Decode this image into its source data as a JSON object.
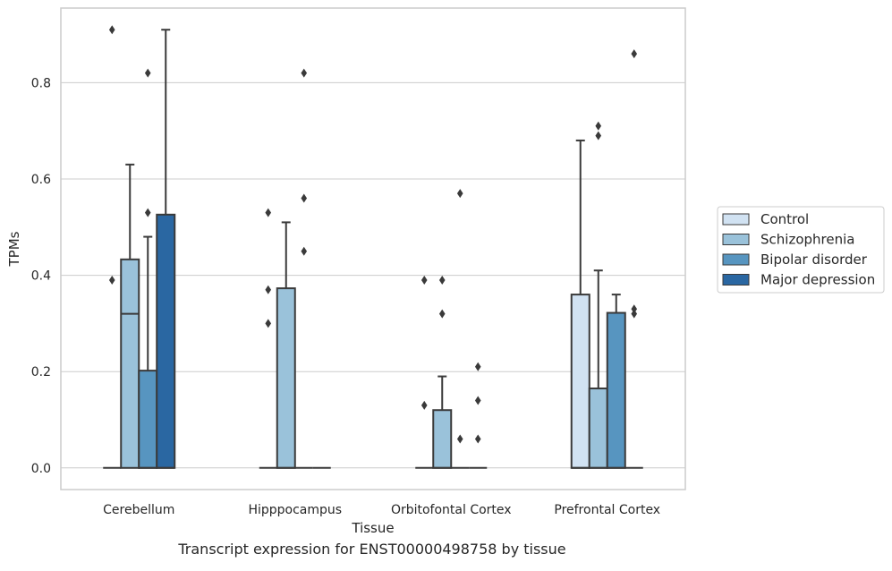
{
  "chart_data": {
    "type": "box",
    "xlabel": "Tissue",
    "ylabel": "TPMs",
    "caption": "Transcript expression for ENST00000498758 by tissue",
    "ylim": [
      -0.045,
      0.955
    ],
    "yticks": [
      0.0,
      0.2,
      0.4,
      0.6,
      0.8
    ],
    "ytick_labels": [
      "0.0",
      "0.2",
      "0.4",
      "0.6",
      "0.8"
    ],
    "categories": [
      "Cerebellum",
      "Hipppocampus",
      "Orbitofontal Cortex",
      "Prefrontal Cortex"
    ],
    "grid": "horizontal",
    "legend_position": "right",
    "series": [
      {
        "name": "Control",
        "color": "#d1e2f2",
        "boxes": [
          {
            "q1": 0,
            "median": 0,
            "q3": 0,
            "whisker_low": 0,
            "whisker_high": 0,
            "outliers": [
              0.39,
              0.91
            ]
          },
          {
            "q1": 0,
            "median": 0,
            "q3": 0,
            "whisker_low": 0,
            "whisker_high": 0,
            "outliers": [
              0.3,
              0.37,
              0.53
            ]
          },
          {
            "q1": 0,
            "median": 0,
            "q3": 0,
            "whisker_low": 0,
            "whisker_high": 0,
            "outliers": [
              0.13,
              0.39
            ]
          },
          {
            "q1": 0,
            "median": 0,
            "q3": 0.36,
            "whisker_low": 0,
            "whisker_high": 0.68,
            "outliers": []
          }
        ]
      },
      {
        "name": "Schizophrenia",
        "color": "#9ac2da",
        "boxes": [
          {
            "q1": 0,
            "median": 0.32,
            "q3": 0.433,
            "whisker_low": 0,
            "whisker_high": 0.63,
            "outliers": []
          },
          {
            "q1": 0,
            "median": 0,
            "q3": 0.373,
            "whisker_low": 0,
            "whisker_high": 0.51,
            "outliers": []
          },
          {
            "q1": 0,
            "median": 0,
            "q3": 0.12,
            "whisker_low": 0,
            "whisker_high": 0.19,
            "outliers": [
              0.32,
              0.39
            ]
          },
          {
            "q1": 0,
            "median": 0,
            "q3": 0.165,
            "whisker_low": 0,
            "whisker_high": 0.41,
            "outliers": [
              0.69,
              0.71
            ]
          }
        ]
      },
      {
        "name": "Bipolar disorder",
        "color": "#5795c0",
        "boxes": [
          {
            "q1": 0,
            "median": 0,
            "q3": 0.202,
            "whisker_low": 0,
            "whisker_high": 0.48,
            "outliers": [
              0.53,
              0.82
            ]
          },
          {
            "q1": 0,
            "median": 0,
            "q3": 0,
            "whisker_low": 0,
            "whisker_high": 0,
            "outliers": [
              0.45,
              0.56,
              0.82
            ]
          },
          {
            "q1": 0,
            "median": 0,
            "q3": 0,
            "whisker_low": 0,
            "whisker_high": 0,
            "outliers": [
              0.06,
              0.57
            ]
          },
          {
            "q1": 0,
            "median": 0,
            "q3": 0.322,
            "whisker_low": 0,
            "whisker_high": 0.36,
            "outliers": []
          }
        ]
      },
      {
        "name": "Major depression",
        "color": "#2a67a2",
        "boxes": [
          {
            "q1": 0,
            "median": 0,
            "q3": 0.526,
            "whisker_low": 0,
            "whisker_high": 0.91,
            "outliers": []
          },
          {
            "q1": 0,
            "median": 0,
            "q3": 0,
            "whisker_low": 0,
            "whisker_high": 0,
            "outliers": []
          },
          {
            "q1": 0,
            "median": 0,
            "q3": 0,
            "whisker_low": 0,
            "whisker_high": 0,
            "outliers": [
              0.06,
              0.14,
              0.21
            ]
          },
          {
            "q1": 0,
            "median": 0,
            "q3": 0,
            "whisker_low": 0,
            "whisker_high": 0,
            "outliers": [
              0.32,
              0.33,
              0.86
            ]
          }
        ]
      }
    ]
  }
}
